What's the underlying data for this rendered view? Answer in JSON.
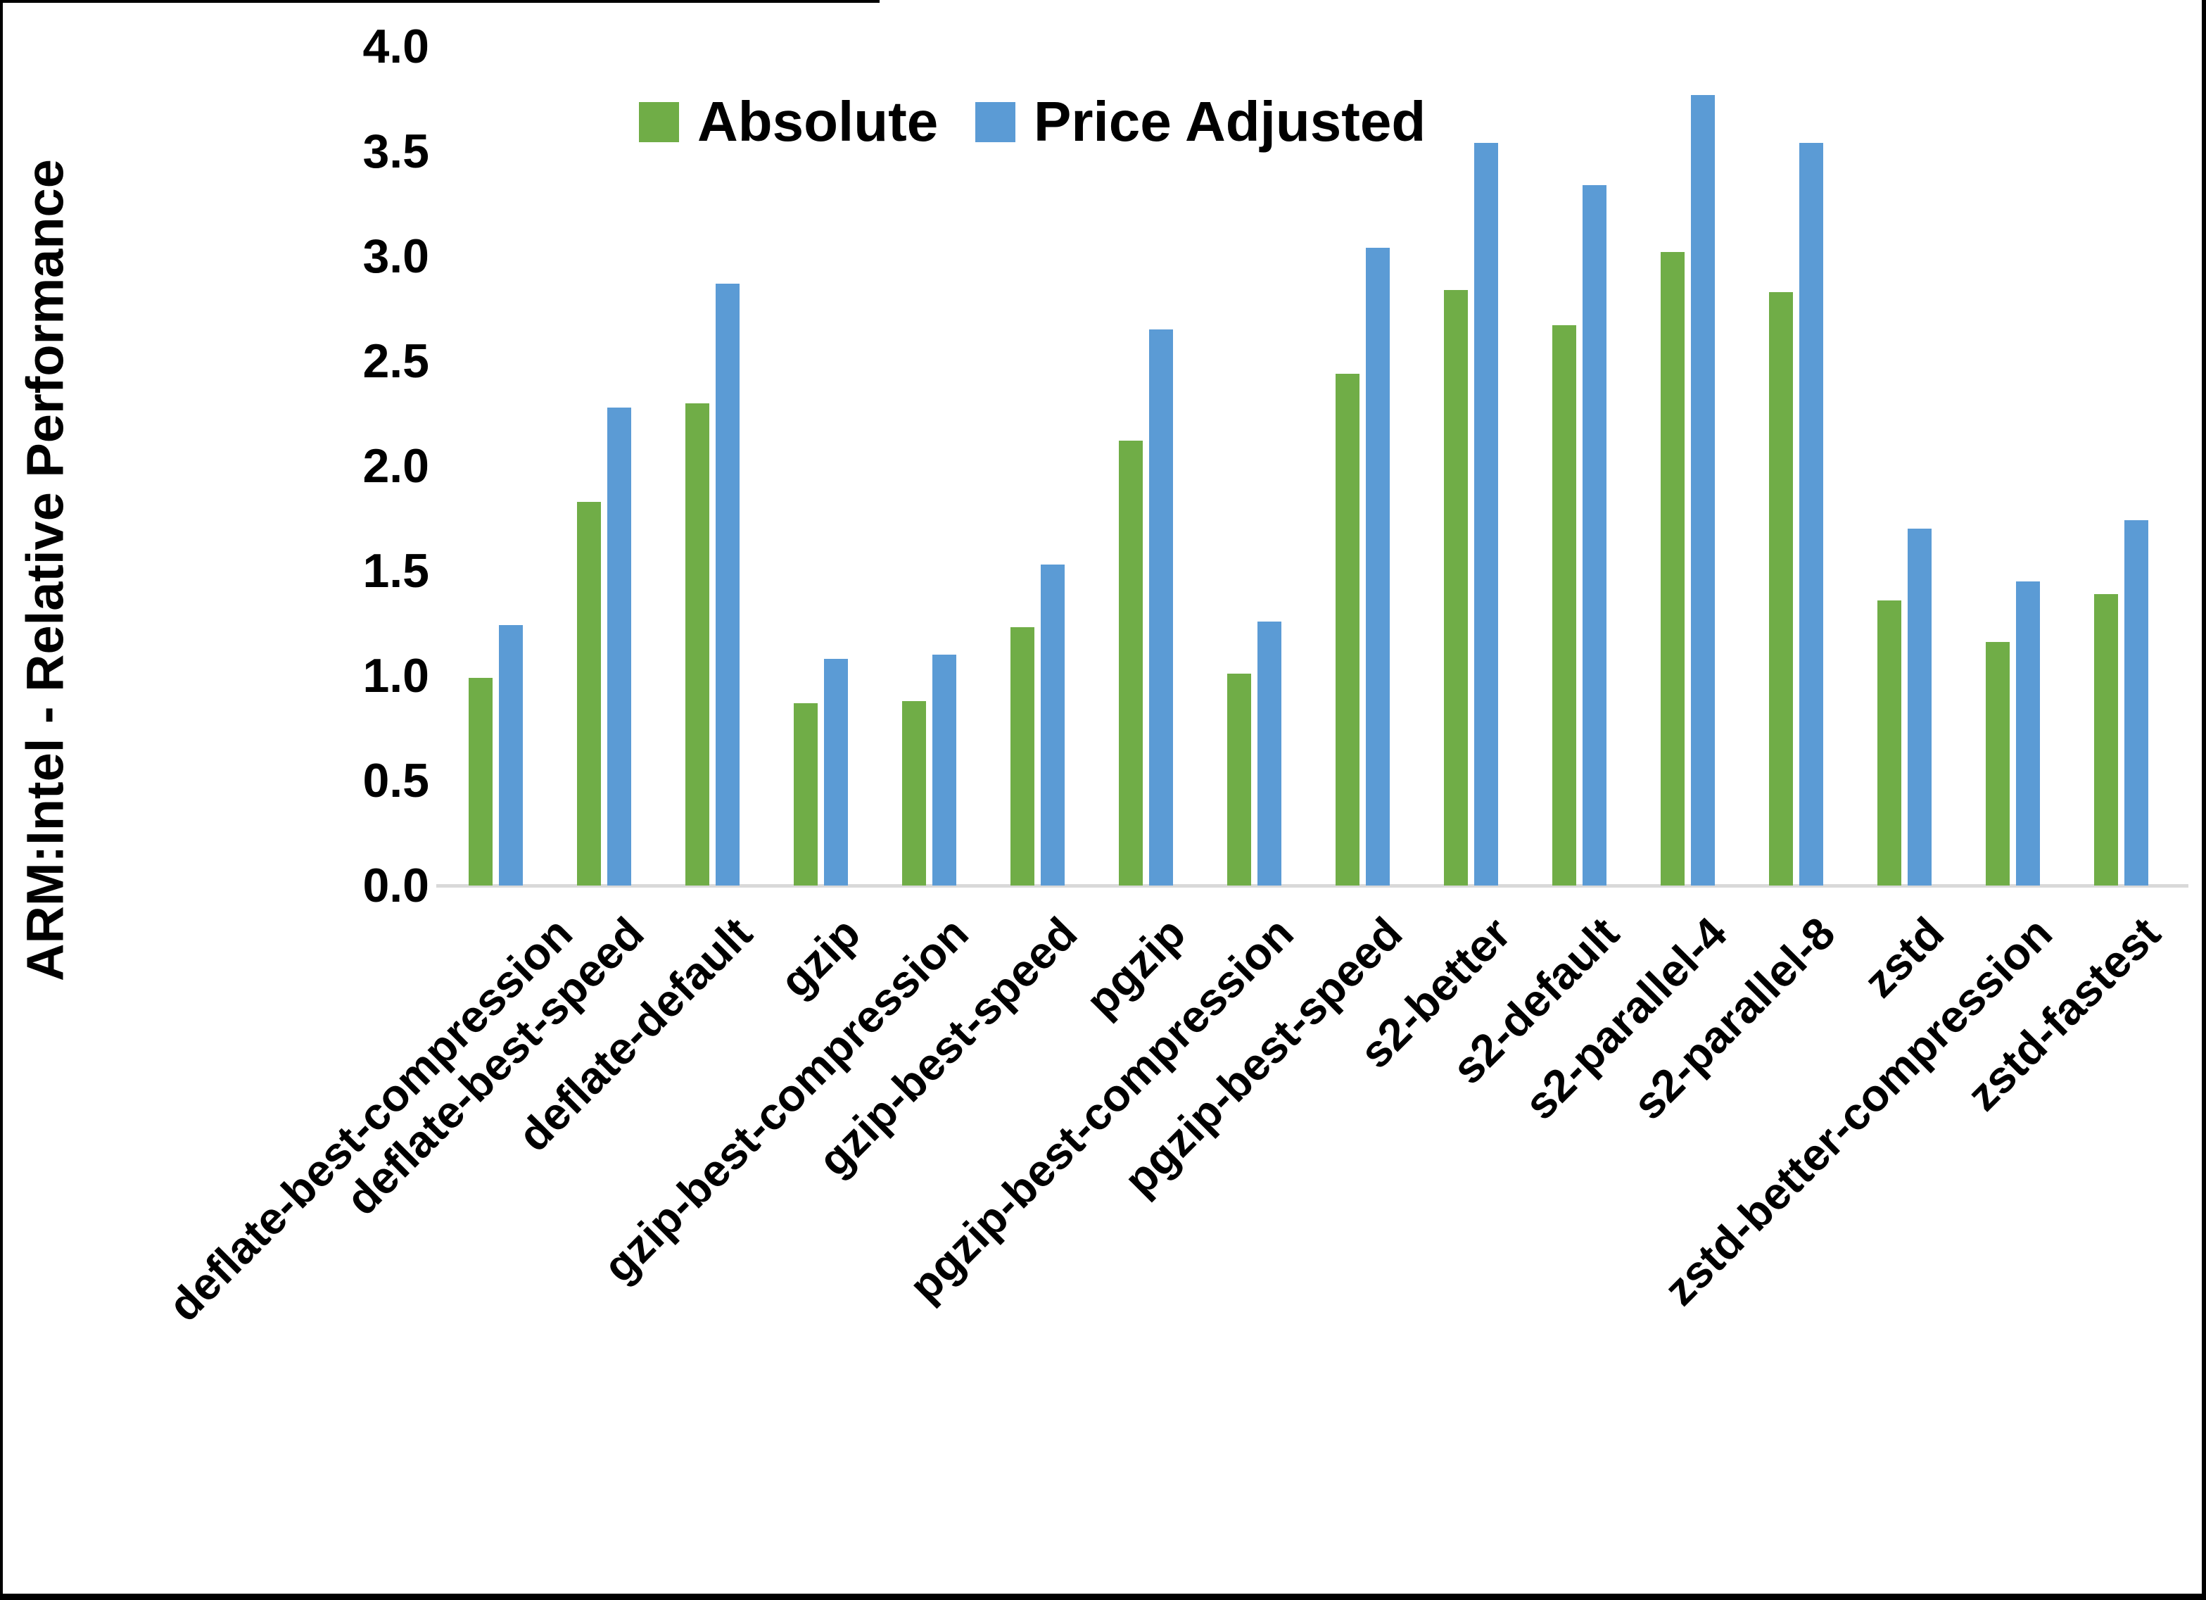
{
  "chart_data": {
    "type": "bar",
    "title": "",
    "xlabel": "",
    "ylabel": "ARM:Intel - Relative Performance",
    "ylim": [
      0.0,
      4.0
    ],
    "ytick_labels": [
      "0.0",
      "0.5",
      "1.0",
      "1.5",
      "2.0",
      "2.5",
      "3.0",
      "3.5",
      "4.0"
    ],
    "grid": false,
    "legend_position": "top-center",
    "categories": [
      "deflate-best-compression",
      "deflate-best-speed",
      "deflate-default",
      "gzip",
      "gzip-best-compression",
      "gzip-best-speed",
      "pgzip",
      "pgzip-best-compression",
      "pgzip-best-speed",
      "s2-better",
      "s2-default",
      "s2-parallel-4",
      "s2-parallel-8",
      "zstd",
      "zstd-better-compression",
      "zstd-fastest"
    ],
    "series": [
      {
        "name": "Absolute",
        "color": "#70AD47",
        "values": [
          0.99,
          1.83,
          2.3,
          0.87,
          0.88,
          1.23,
          2.12,
          1.01,
          2.44,
          2.84,
          2.67,
          3.02,
          2.83,
          1.36,
          1.16,
          1.39
        ]
      },
      {
        "name": "Price Adjusted",
        "color": "#5B9BD5",
        "values": [
          1.24,
          2.28,
          2.87,
          1.08,
          1.1,
          1.53,
          2.65,
          1.26,
          3.04,
          3.54,
          3.34,
          3.77,
          3.54,
          1.7,
          1.45,
          1.74
        ]
      }
    ]
  },
  "colors": {
    "background": "#FFFFFF",
    "axis_line": "#D9D9D9",
    "text": "#000000",
    "frame_border": "#000000"
  }
}
